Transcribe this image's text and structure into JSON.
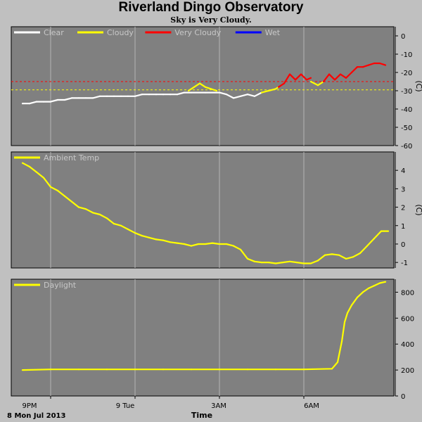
{
  "header": {
    "title": "Riverland Dingo Observatory",
    "status": "Sky is Very Cloudy."
  },
  "x_axis": {
    "label": "Time",
    "date": "8 Mon Jul 2013",
    "tick_labels": [
      "9PM",
      "9 Tue",
      "3AM",
      "6AM"
    ]
  },
  "chart_data": [
    {
      "type": "line",
      "name": "sky",
      "ylabel": "(C)",
      "ylim": [
        -60,
        5
      ],
      "yticks": [
        0,
        -10,
        -20,
        -30,
        -40,
        -50,
        -60
      ],
      "thresholds": [
        {
          "value": -25,
          "color": "#ff0000"
        },
        {
          "value": -29.5,
          "color": "#ffff00"
        }
      ],
      "legend": [
        {
          "label": "Clear",
          "color": "#ffffff"
        },
        {
          "label": "Cloudy",
          "color": "#ffff00"
        },
        {
          "label": "Very Cloudy",
          "color": "#ff0000"
        },
        {
          "label": "Wet",
          "color": "#0000ff"
        }
      ],
      "series": [
        {
          "color": "#ffffff",
          "x": [
            20.0,
            20.25,
            20.5,
            20.75,
            21.0,
            21.25,
            21.5,
            21.75,
            22.0,
            22.25,
            22.5,
            22.75,
            23.0,
            23.25,
            23.5,
            23.75,
            24.0,
            24.25,
            24.5,
            24.75,
            25.0,
            25.25,
            25.5,
            25.75,
            26.0,
            26.5,
            27.0,
            27.25,
            27.5,
            27.75,
            28.0,
            28.25,
            28.5
          ],
          "y": [
            -37,
            -37,
            -36,
            -36,
            -36,
            -35,
            -35,
            -34,
            -34,
            -34,
            -34,
            -33,
            -33,
            -33,
            -33,
            -33,
            -33,
            -32,
            -32,
            -32,
            -32,
            -32,
            -32,
            -31,
            -31,
            -31,
            -31,
            -32,
            -34,
            -33,
            -32,
            -33,
            -31
          ]
        },
        {
          "color": "#ffff00",
          "x": [
            25.9,
            26.1,
            26.3,
            26.5,
            26.7,
            26.9
          ],
          "y": [
            -30,
            -28,
            -26,
            -28,
            -29,
            -30
          ]
        },
        {
          "color": "#ffff00",
          "x": [
            28.5,
            28.75,
            29.0,
            29.1
          ],
          "y": [
            -31,
            -30,
            -29,
            -28
          ]
        },
        {
          "color": "#ff0000",
          "x": [
            29.1,
            29.3,
            29.5,
            29.7,
            29.9,
            30.1,
            30.25
          ],
          "y": [
            -28,
            -26,
            -21,
            -24,
            -21,
            -24,
            -23
          ]
        },
        {
          "color": "#ffff00",
          "x": [
            30.25,
            30.5,
            30.7
          ],
          "y": [
            -25,
            -27,
            -25
          ]
        },
        {
          "color": "#ff0000",
          "x": [
            30.7,
            30.9,
            31.1,
            31.3,
            31.5,
            31.7,
            31.9,
            32.1,
            32.3,
            32.5,
            32.7,
            32.9
          ],
          "y": [
            -25,
            -21,
            -24,
            -21,
            -23,
            -20,
            -17,
            -17,
            -16,
            -15,
            -15,
            -16
          ]
        }
      ]
    },
    {
      "type": "line",
      "name": "Ambient Temp",
      "ylabel": "(C)",
      "ylim": [
        -1.3,
        5.0
      ],
      "yticks": [
        4,
        3,
        2,
        1,
        0,
        -1
      ],
      "legend": [
        {
          "label": "Ambient Temp",
          "color": "#ffff00"
        }
      ],
      "series": [
        {
          "color": "#ffff00",
          "x": [
            20.0,
            20.25,
            20.5,
            20.75,
            21.0,
            21.25,
            21.5,
            21.75,
            22.0,
            22.25,
            22.5,
            22.75,
            23.0,
            23.25,
            23.5,
            23.75,
            24.0,
            24.25,
            24.5,
            24.75,
            25.0,
            25.25,
            25.5,
            25.75,
            26.0,
            26.25,
            26.5,
            26.75,
            27.0,
            27.25,
            27.5,
            27.75,
            28.0,
            28.25,
            28.5,
            28.75,
            29.0,
            29.25,
            29.5,
            29.75,
            30.0,
            30.25,
            30.5,
            30.75,
            31.0,
            31.25,
            31.5,
            31.75,
            32.0,
            32.25,
            32.5,
            32.75,
            33.0
          ],
          "y": [
            4.4,
            4.2,
            3.9,
            3.6,
            3.1,
            2.9,
            2.6,
            2.3,
            2.0,
            1.9,
            1.7,
            1.6,
            1.4,
            1.1,
            1.0,
            0.8,
            0.6,
            0.45,
            0.35,
            0.25,
            0.2,
            0.1,
            0.05,
            0.0,
            -0.1,
            0.0,
            0.0,
            0.05,
            0.0,
            0.0,
            -0.1,
            -0.3,
            -0.8,
            -0.95,
            -1.0,
            -1.0,
            -1.05,
            -1.0,
            -0.95,
            -1.0,
            -1.05,
            -1.05,
            -0.9,
            -0.6,
            -0.55,
            -0.6,
            -0.8,
            -0.7,
            -0.5,
            -0.1,
            0.3,
            0.7,
            0.7
          ]
        }
      ]
    },
    {
      "type": "line",
      "name": "Daylight",
      "ylabel": "",
      "ylim": [
        0,
        900
      ],
      "yticks": [
        800,
        600,
        400,
        200,
        0
      ],
      "legend": [
        {
          "label": "Daylight",
          "color": "#ffff00"
        }
      ],
      "series": [
        {
          "color": "#ffff00",
          "x": [
            20.0,
            21.0,
            22.0,
            23.0,
            24.0,
            25.0,
            26.0,
            27.0,
            28.0,
            29.0,
            30.0,
            31.0,
            31.2,
            31.35,
            31.45,
            31.55,
            31.7,
            31.9,
            32.1,
            32.3,
            32.5,
            32.7,
            32.9
          ],
          "y": [
            200,
            205,
            205,
            205,
            205,
            205,
            205,
            205,
            205,
            205,
            205,
            210,
            260,
            420,
            570,
            640,
            700,
            760,
            800,
            830,
            850,
            870,
            880
          ]
        }
      ]
    }
  ]
}
